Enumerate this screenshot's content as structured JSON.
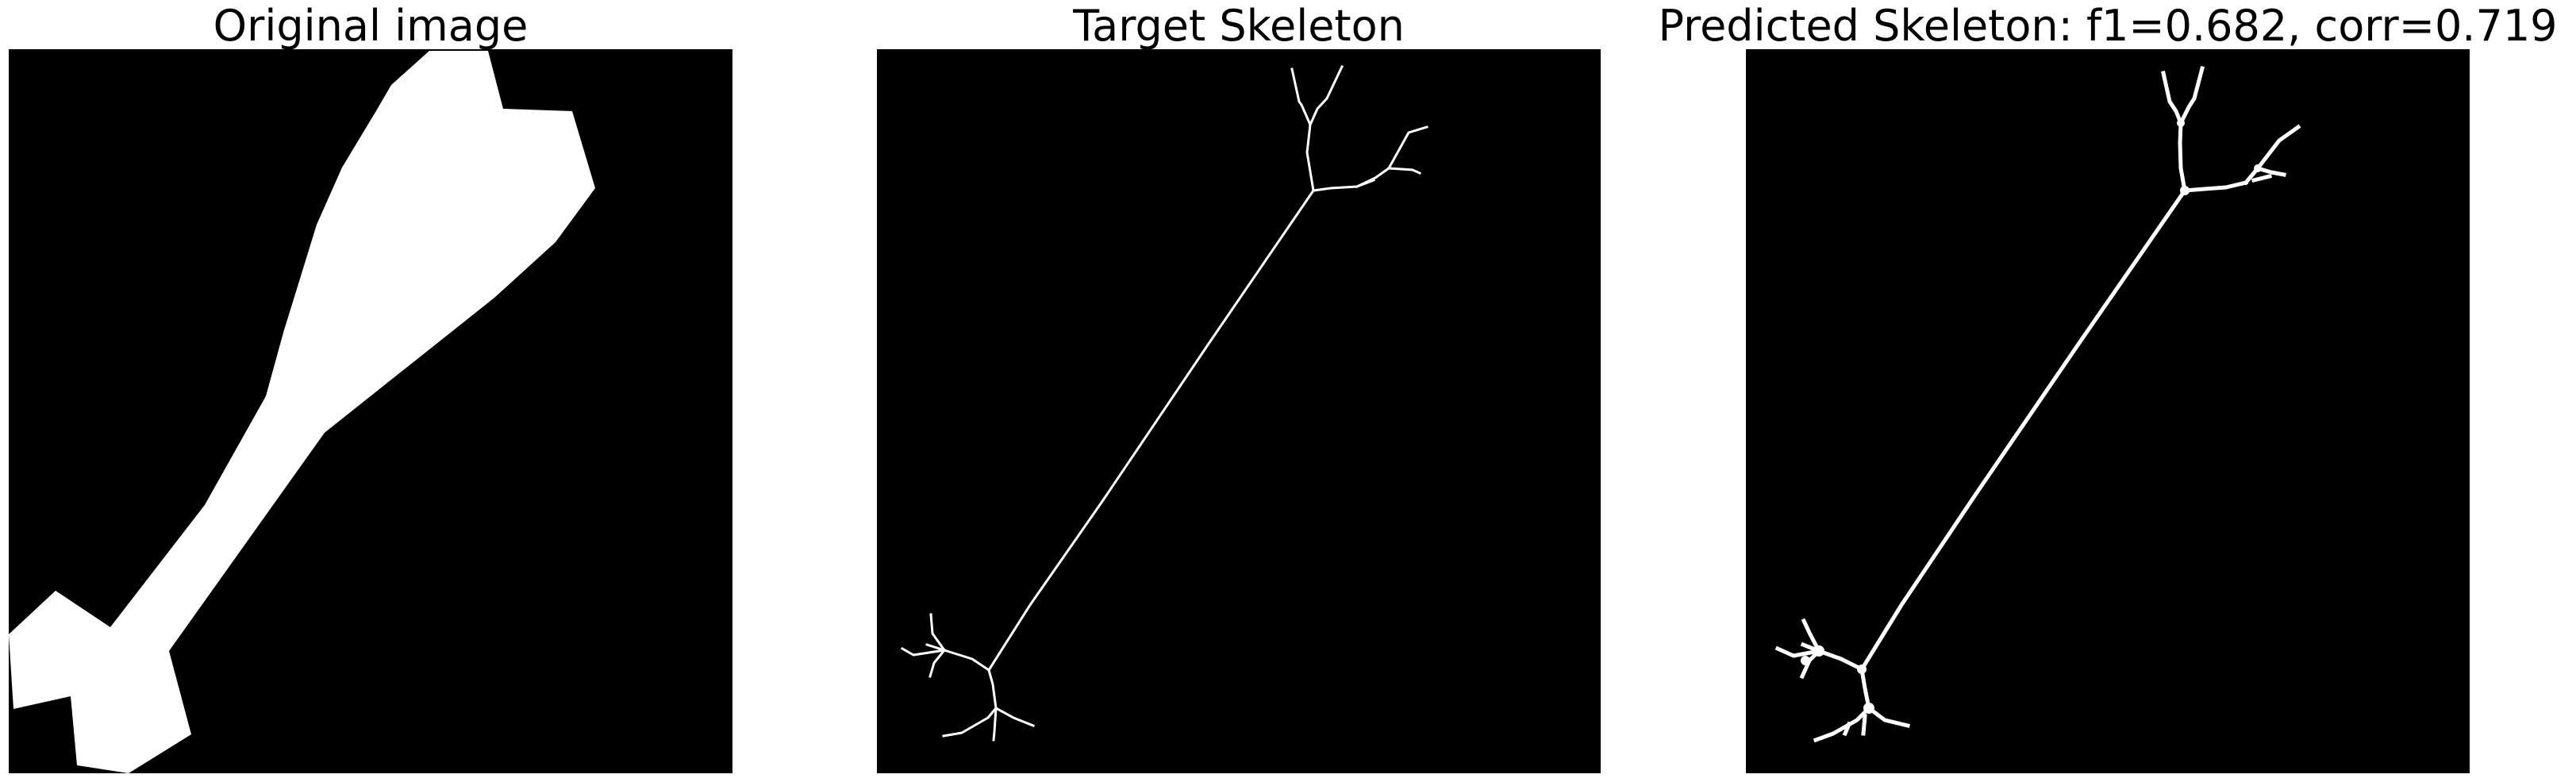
{
  "panels": [
    {
      "title": "Original image"
    },
    {
      "title": "Target Skeleton"
    },
    {
      "title": "Predicted Skeleton: f1=0.682, corr=0.719"
    }
  ],
  "colors": {
    "background": "#000000",
    "foreground": "#ffffff",
    "figure_background": "#ffffff"
  }
}
